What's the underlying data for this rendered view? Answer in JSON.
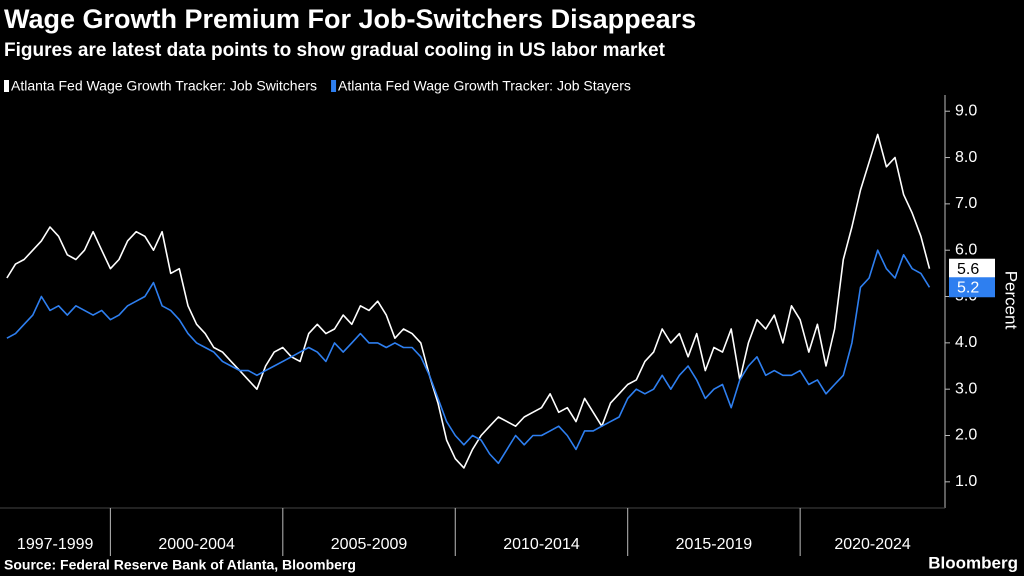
{
  "chart_data": {
    "type": "line",
    "title": "Wage Growth Premium For Job-Switchers Disappears",
    "subtitle": "Figures are latest data points to show gradual cooling in US labor market",
    "y_label": "Percent",
    "source": "Source: Federal Reserve Bank of Atlanta, Bloomberg",
    "brand": "Bloomberg",
    "x": [
      1997,
      1997.25,
      1997.5,
      1997.75,
      1998,
      1998.25,
      1998.5,
      1998.75,
      1999,
      1999.25,
      1999.5,
      1999.75,
      2000,
      2000.25,
      2000.5,
      2000.75,
      2001,
      2001.25,
      2001.5,
      2001.75,
      2002,
      2002.25,
      2002.5,
      2002.75,
      2003,
      2003.25,
      2003.5,
      2003.75,
      2004,
      2004.25,
      2004.5,
      2004.75,
      2005,
      2005.25,
      2005.5,
      2005.75,
      2006,
      2006.25,
      2006.5,
      2006.75,
      2007,
      2007.25,
      2007.5,
      2007.75,
      2008,
      2008.25,
      2008.5,
      2008.75,
      2009,
      2009.25,
      2009.5,
      2009.75,
      2010,
      2010.25,
      2010.5,
      2010.75,
      2011,
      2011.25,
      2011.5,
      2011.75,
      2012,
      2012.25,
      2012.5,
      2012.75,
      2013,
      2013.25,
      2013.5,
      2013.75,
      2014,
      2014.25,
      2014.5,
      2014.75,
      2015,
      2015.25,
      2015.5,
      2015.75,
      2016,
      2016.25,
      2016.5,
      2016.75,
      2017,
      2017.25,
      2017.5,
      2017.75,
      2018,
      2018.25,
      2018.5,
      2018.75,
      2019,
      2019.25,
      2019.5,
      2019.75,
      2020,
      2020.25,
      2020.5,
      2020.75,
      2021,
      2021.25,
      2021.5,
      2021.75,
      2022,
      2022.25,
      2022.5,
      2022.75,
      2023,
      2023.25,
      2023.5,
      2023.75
    ],
    "series": [
      {
        "name": "Atlanta Fed Wage Growth Tracker: Job Switchers",
        "color": "#ffffff",
        "end_label": "5.6",
        "values": [
          5.4,
          5.7,
          5.8,
          6.0,
          6.2,
          6.5,
          6.3,
          5.9,
          5.8,
          6.0,
          6.4,
          6.0,
          5.6,
          5.8,
          6.2,
          6.4,
          6.3,
          6.0,
          6.4,
          5.5,
          5.6,
          4.8,
          4.4,
          4.2,
          3.9,
          3.8,
          3.6,
          3.4,
          3.2,
          3.0,
          3.5,
          3.8,
          3.9,
          3.7,
          3.6,
          4.2,
          4.4,
          4.2,
          4.3,
          4.6,
          4.4,
          4.8,
          4.7,
          4.9,
          4.6,
          4.1,
          4.3,
          4.2,
          4.0,
          3.3,
          2.7,
          1.9,
          1.5,
          1.3,
          1.7,
          2.0,
          2.2,
          2.4,
          2.3,
          2.2,
          2.4,
          2.5,
          2.6,
          2.9,
          2.5,
          2.6,
          2.3,
          2.8,
          2.5,
          2.2,
          2.7,
          2.9,
          3.1,
          3.2,
          3.6,
          3.8,
          4.3,
          4.0,
          4.2,
          3.7,
          4.2,
          3.4,
          3.9,
          3.8,
          4.3,
          3.2,
          4.0,
          4.5,
          4.3,
          4.6,
          4.0,
          4.8,
          4.5,
          3.8,
          4.4,
          3.5,
          4.3,
          5.8,
          6.5,
          7.3,
          7.9,
          8.5,
          7.8,
          8.0,
          7.2,
          6.8,
          6.3,
          5.6
        ]
      },
      {
        "name": "Atlanta Fed Wage Growth Tracker: Job Stayers",
        "color": "#2e7ff0",
        "end_label": "5.2",
        "values": [
          4.1,
          4.2,
          4.4,
          4.6,
          5.0,
          4.7,
          4.8,
          4.6,
          4.8,
          4.7,
          4.6,
          4.7,
          4.5,
          4.6,
          4.8,
          4.9,
          5.0,
          5.3,
          4.8,
          4.7,
          4.5,
          4.2,
          4.0,
          3.9,
          3.8,
          3.6,
          3.5,
          3.4,
          3.4,
          3.3,
          3.4,
          3.5,
          3.6,
          3.7,
          3.8,
          3.9,
          3.8,
          3.6,
          4.0,
          3.8,
          4.0,
          4.2,
          4.0,
          4.0,
          3.9,
          4.0,
          3.9,
          3.9,
          3.7,
          3.3,
          2.8,
          2.3,
          2.0,
          1.8,
          2.0,
          1.9,
          1.6,
          1.4,
          1.7,
          2.0,
          1.8,
          2.0,
          2.0,
          2.1,
          2.2,
          2.0,
          1.7,
          2.1,
          2.1,
          2.2,
          2.3,
          2.4,
          2.8,
          3.0,
          2.9,
          3.0,
          3.3,
          3.0,
          3.3,
          3.5,
          3.2,
          2.8,
          3.0,
          3.1,
          2.6,
          3.2,
          3.5,
          3.7,
          3.3,
          3.4,
          3.3,
          3.3,
          3.4,
          3.1,
          3.2,
          2.9,
          3.1,
          3.3,
          4.0,
          5.2,
          5.4,
          6.0,
          5.6,
          5.4,
          5.9,
          5.6,
          5.5,
          5.2
        ]
      }
    ],
    "xlim": [
      1996.8,
      2024.2
    ],
    "xbands": [
      {
        "label": "1997-1999",
        "start": 1996.8,
        "end": 2000
      },
      {
        "label": "2000-2004",
        "start": 2000,
        "end": 2005
      },
      {
        "label": "2005-2009",
        "start": 2005,
        "end": 2010
      },
      {
        "label": "2010-2014",
        "start": 2010,
        "end": 2015
      },
      {
        "label": "2015-2019",
        "start": 2015,
        "end": 2020
      },
      {
        "label": "2020-2024",
        "start": 2020,
        "end": 2024.2
      }
    ],
    "ylim": [
      0.5,
      9.35
    ],
    "yticks": [
      {
        "value": 1,
        "label": "1.0"
      },
      {
        "value": 2,
        "label": "2.0"
      },
      {
        "value": 3,
        "label": "3.0"
      },
      {
        "value": 4,
        "label": "4.0"
      },
      {
        "value": 5,
        "label": "5.0"
      },
      {
        "value": 6,
        "label": "6.0"
      },
      {
        "value": 7,
        "label": "7.0"
      },
      {
        "value": 8,
        "label": "8.0"
      },
      {
        "value": 9,
        "label": "9.0"
      }
    ]
  }
}
